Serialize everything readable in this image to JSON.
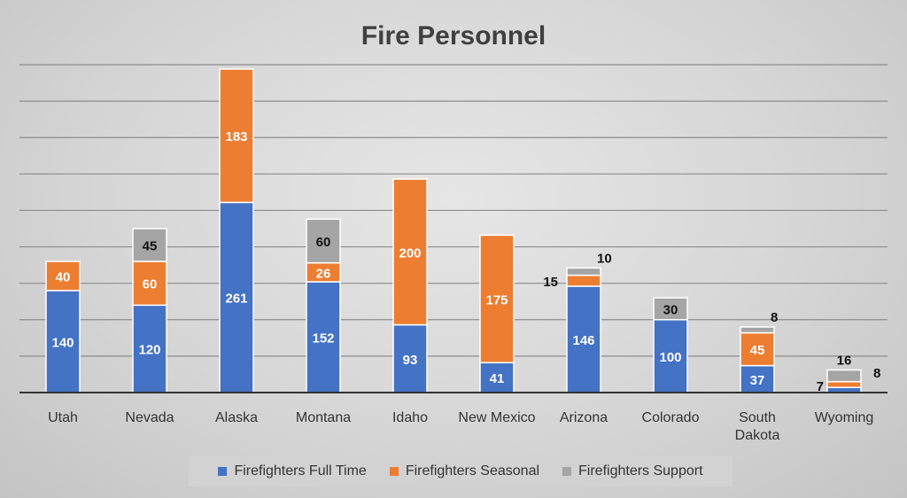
{
  "chart_data": {
    "type": "bar",
    "stacked": true,
    "title": "Fire Personnel",
    "categories": [
      "Utah",
      "Nevada",
      "Alaska",
      "Montana",
      "Idaho",
      "New Mexico",
      "Arizona",
      "Colorado",
      "South Dakota",
      "Wyoming"
    ],
    "series": [
      {
        "name": "Firefighters Full Time",
        "color": "#4472c4",
        "values": [
          140,
          120,
          261,
          152,
          93,
          41,
          146,
          100,
          37,
          7
        ]
      },
      {
        "name": "Firefighters Seasonal",
        "color": "#ed7d31",
        "values": [
          40,
          60,
          183,
          26,
          200,
          175,
          15,
          0,
          45,
          8
        ]
      },
      {
        "name": "Firefighters Support",
        "color": "#a5a5a5",
        "values": [
          0,
          45,
          0,
          60,
          0,
          0,
          10,
          30,
          8,
          16
        ]
      }
    ],
    "ylim": [
      0,
      450
    ],
    "grid": true,
    "legend_position": "bottom"
  }
}
